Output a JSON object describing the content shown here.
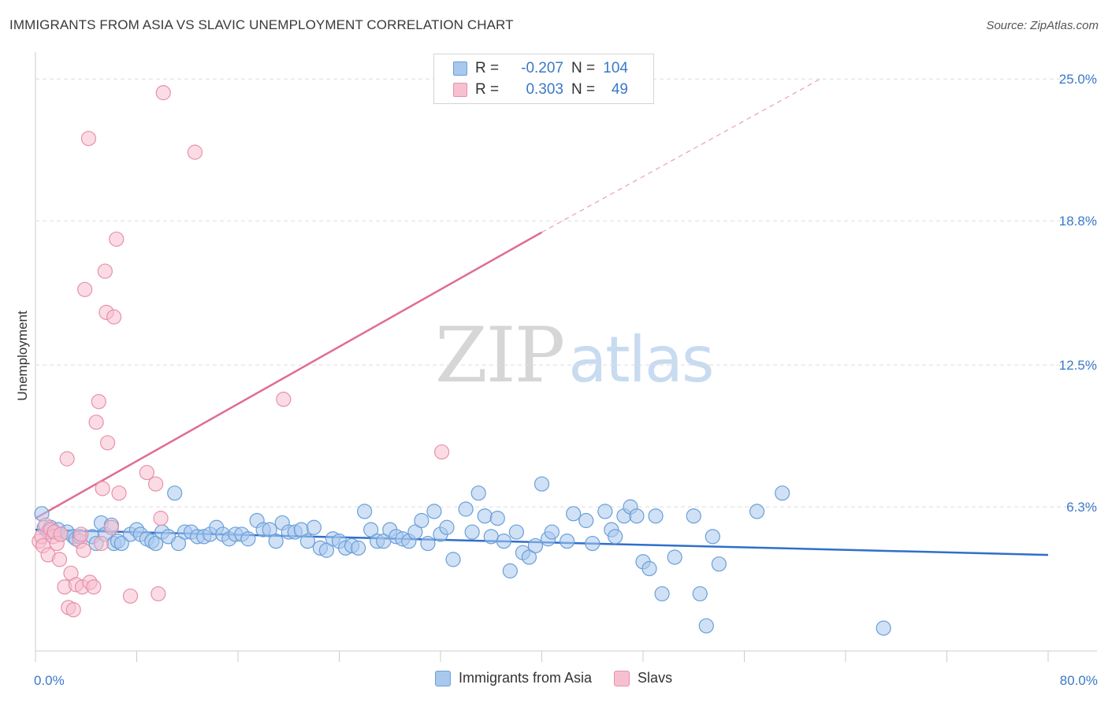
{
  "title": "IMMIGRANTS FROM ASIA VS SLAVIC UNEMPLOYMENT CORRELATION CHART",
  "source": "Source: ZipAtlas.com",
  "watermark": {
    "part1": "ZIP",
    "part2": "atlas"
  },
  "legend_top": {
    "rows": [
      {
        "r_label": "R =",
        "r_value": "-0.207",
        "n_label": "N =",
        "n_value": "104",
        "color": "#a9c8ee",
        "border": "#6a9fd8"
      },
      {
        "r_label": "R =",
        "r_value": "0.303",
        "n_label": "N =",
        "n_value": "49",
        "color": "#f7c0d0",
        "border": "#e890aa"
      }
    ]
  },
  "legend_bottom": {
    "items": [
      {
        "label": "Immigrants from Asia",
        "color": "#a9c8ee",
        "border": "#6a9fd8"
      },
      {
        "label": "Slavs",
        "color": "#f7c0d0",
        "border": "#e890aa"
      }
    ]
  },
  "chart_data": {
    "type": "scatter",
    "title": "IMMIGRANTS FROM ASIA VS SLAVIC UNEMPLOYMENT CORRELATION CHART",
    "xlabel": "",
    "ylabel": "Unemployment",
    "xlim": [
      0,
      80
    ],
    "ylim": [
      0,
      25.8
    ],
    "x_tick_labels": [
      "0.0%",
      "80.0%"
    ],
    "y_ticks": [
      6.3,
      12.5,
      18.8,
      25.0
    ],
    "y_tick_labels": [
      "6.3%",
      "12.5%",
      "18.8%",
      "25.0%"
    ],
    "grid": true,
    "legend_position": "top-center",
    "series": [
      {
        "name": "Immigrants from Asia",
        "color": "#6a9fd8",
        "fill": "#a9c8ee",
        "trend": {
          "x1": 0,
          "y1": 5.3,
          "x2": 80,
          "y2": 4.2
        },
        "points": [
          [
            0.5,
            6.0
          ],
          [
            0.7,
            5.4
          ],
          [
            1.0,
            5.2
          ],
          [
            1.2,
            5.4
          ],
          [
            1.5,
            5.2
          ],
          [
            1.8,
            5.3
          ],
          [
            2.0,
            5.1
          ],
          [
            2.5,
            5.2
          ],
          [
            3.0,
            5.0
          ],
          [
            3.2,
            4.9
          ],
          [
            3.5,
            5.0
          ],
          [
            4.5,
            5.0
          ],
          [
            4.8,
            4.7
          ],
          [
            5.2,
            5.6
          ],
          [
            5.5,
            5.1
          ],
          [
            6.0,
            5.5
          ],
          [
            6.2,
            4.7
          ],
          [
            6.5,
            4.8
          ],
          [
            6.8,
            4.7
          ],
          [
            7.5,
            5.1
          ],
          [
            8.0,
            5.3
          ],
          [
            8.3,
            5.1
          ],
          [
            8.8,
            4.9
          ],
          [
            9.2,
            4.8
          ],
          [
            9.5,
            4.7
          ],
          [
            10.0,
            5.2
          ],
          [
            10.5,
            5.0
          ],
          [
            11.0,
            6.9
          ],
          [
            11.3,
            4.7
          ],
          [
            11.8,
            5.2
          ],
          [
            12.3,
            5.2
          ],
          [
            12.8,
            5.0
          ],
          [
            13.3,
            5.0
          ],
          [
            13.8,
            5.1
          ],
          [
            14.3,
            5.4
          ],
          [
            14.8,
            5.1
          ],
          [
            15.3,
            4.9
          ],
          [
            15.8,
            5.1
          ],
          [
            16.3,
            5.1
          ],
          [
            16.8,
            4.9
          ],
          [
            17.5,
            5.7
          ],
          [
            18.0,
            5.3
          ],
          [
            18.5,
            5.3
          ],
          [
            19.0,
            4.8
          ],
          [
            19.5,
            5.6
          ],
          [
            20.0,
            5.2
          ],
          [
            20.5,
            5.2
          ],
          [
            21.0,
            5.3
          ],
          [
            21.5,
            4.8
          ],
          [
            22.0,
            5.4
          ],
          [
            22.5,
            4.5
          ],
          [
            23.0,
            4.4
          ],
          [
            23.5,
            4.9
          ],
          [
            24.0,
            4.8
          ],
          [
            24.5,
            4.5
          ],
          [
            25.0,
            4.6
          ],
          [
            25.5,
            4.5
          ],
          [
            26.0,
            6.1
          ],
          [
            26.5,
            5.3
          ],
          [
            27.0,
            4.8
          ],
          [
            27.5,
            4.8
          ],
          [
            28.0,
            5.3
          ],
          [
            28.5,
            5.0
          ],
          [
            29.0,
            4.9
          ],
          [
            29.5,
            4.8
          ],
          [
            30.0,
            5.2
          ],
          [
            30.5,
            5.7
          ],
          [
            31.0,
            4.7
          ],
          [
            31.5,
            6.1
          ],
          [
            32.0,
            5.1
          ],
          [
            32.5,
            5.4
          ],
          [
            33.0,
            4.0
          ],
          [
            34.0,
            6.2
          ],
          [
            34.5,
            5.2
          ],
          [
            35.0,
            6.9
          ],
          [
            35.5,
            5.9
          ],
          [
            36.0,
            5.0
          ],
          [
            36.5,
            5.8
          ],
          [
            37.0,
            4.8
          ],
          [
            37.5,
            3.5
          ],
          [
            38.0,
            5.2
          ],
          [
            38.5,
            4.3
          ],
          [
            39.0,
            4.1
          ],
          [
            39.5,
            4.6
          ],
          [
            40.0,
            7.3
          ],
          [
            40.5,
            4.9
          ],
          [
            40.8,
            5.2
          ],
          [
            42.0,
            4.8
          ],
          [
            42.5,
            6.0
          ],
          [
            43.5,
            5.7
          ],
          [
            44.0,
            4.7
          ],
          [
            45.0,
            6.1
          ],
          [
            45.5,
            5.3
          ],
          [
            45.8,
            5.0
          ],
          [
            46.5,
            5.9
          ],
          [
            47.0,
            6.3
          ],
          [
            47.5,
            5.9
          ],
          [
            48.0,
            3.9
          ],
          [
            48.5,
            3.6
          ],
          [
            49.0,
            5.9
          ],
          [
            49.5,
            2.5
          ],
          [
            50.5,
            4.1
          ],
          [
            52.0,
            5.9
          ],
          [
            52.5,
            2.5
          ],
          [
            53.0,
            1.1
          ],
          [
            53.5,
            5.0
          ],
          [
            54.0,
            3.8
          ],
          [
            57.0,
            6.1
          ],
          [
            59.0,
            6.9
          ],
          [
            67.0,
            1.0
          ]
        ]
      },
      {
        "name": "Slavs",
        "color": "#e890aa",
        "fill": "#f7c0d0",
        "trend": {
          "x1": 0,
          "y1": 5.8,
          "x2": 40,
          "y2": 18.3,
          "dashed_to": {
            "x": 62,
            "y": 25.0
          }
        },
        "points": [
          [
            0.3,
            4.8
          ],
          [
            0.5,
            5.0
          ],
          [
            0.6,
            4.6
          ],
          [
            0.8,
            5.5
          ],
          [
            1.0,
            4.2
          ],
          [
            1.2,
            5.3
          ],
          [
            1.4,
            5.0
          ],
          [
            1.5,
            5.2
          ],
          [
            1.7,
            4.7
          ],
          [
            1.9,
            4.0
          ],
          [
            2.0,
            5.1
          ],
          [
            2.3,
            2.8
          ],
          [
            2.5,
            8.4
          ],
          [
            2.6,
            1.9
          ],
          [
            2.8,
            3.4
          ],
          [
            3.0,
            1.8
          ],
          [
            3.2,
            2.9
          ],
          [
            3.5,
            4.8
          ],
          [
            3.6,
            5.1
          ],
          [
            3.7,
            2.8
          ],
          [
            3.8,
            4.4
          ],
          [
            3.9,
            15.8
          ],
          [
            4.2,
            22.4
          ],
          [
            4.3,
            3.0
          ],
          [
            4.6,
            2.8
          ],
          [
            4.8,
            10.0
          ],
          [
            5.0,
            10.9
          ],
          [
            5.2,
            4.7
          ],
          [
            5.3,
            7.1
          ],
          [
            5.5,
            16.6
          ],
          [
            5.6,
            14.8
          ],
          [
            5.7,
            9.1
          ],
          [
            6.0,
            5.4
          ],
          [
            6.2,
            14.6
          ],
          [
            6.4,
            18.0
          ],
          [
            6.6,
            6.9
          ],
          [
            7.5,
            2.4
          ],
          [
            8.8,
            7.8
          ],
          [
            9.5,
            7.3
          ],
          [
            9.7,
            2.5
          ],
          [
            9.9,
            5.8
          ],
          [
            10.1,
            24.4
          ],
          [
            12.6,
            21.8
          ],
          [
            19.6,
            11.0
          ],
          [
            32.1,
            8.7
          ]
        ]
      }
    ]
  }
}
